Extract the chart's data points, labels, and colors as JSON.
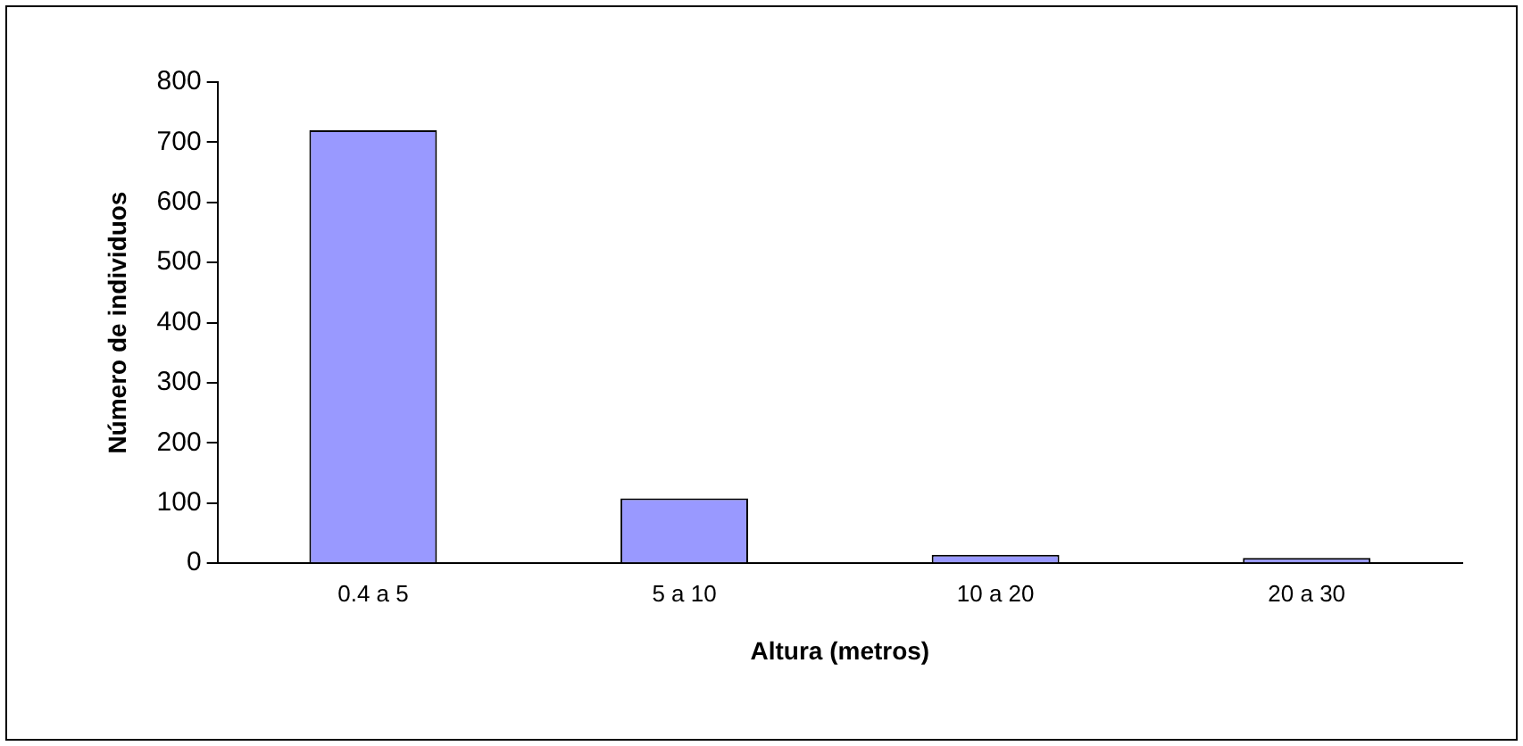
{
  "chart_data": {
    "type": "bar",
    "xlabel": "Altura (metros)",
    "ylabel": "Número de individuos",
    "categories": [
      "0.4 a 5",
      "5 a 10",
      "10 a 20",
      "20 a 30"
    ],
    "values": [
      720,
      108,
      14,
      9
    ],
    "color": "#9999ff",
    "ylim": [
      0,
      800
    ],
    "yticks": [
      0,
      100,
      200,
      300,
      400,
      500,
      600,
      700,
      800
    ],
    "grid": false,
    "legend": false
  }
}
